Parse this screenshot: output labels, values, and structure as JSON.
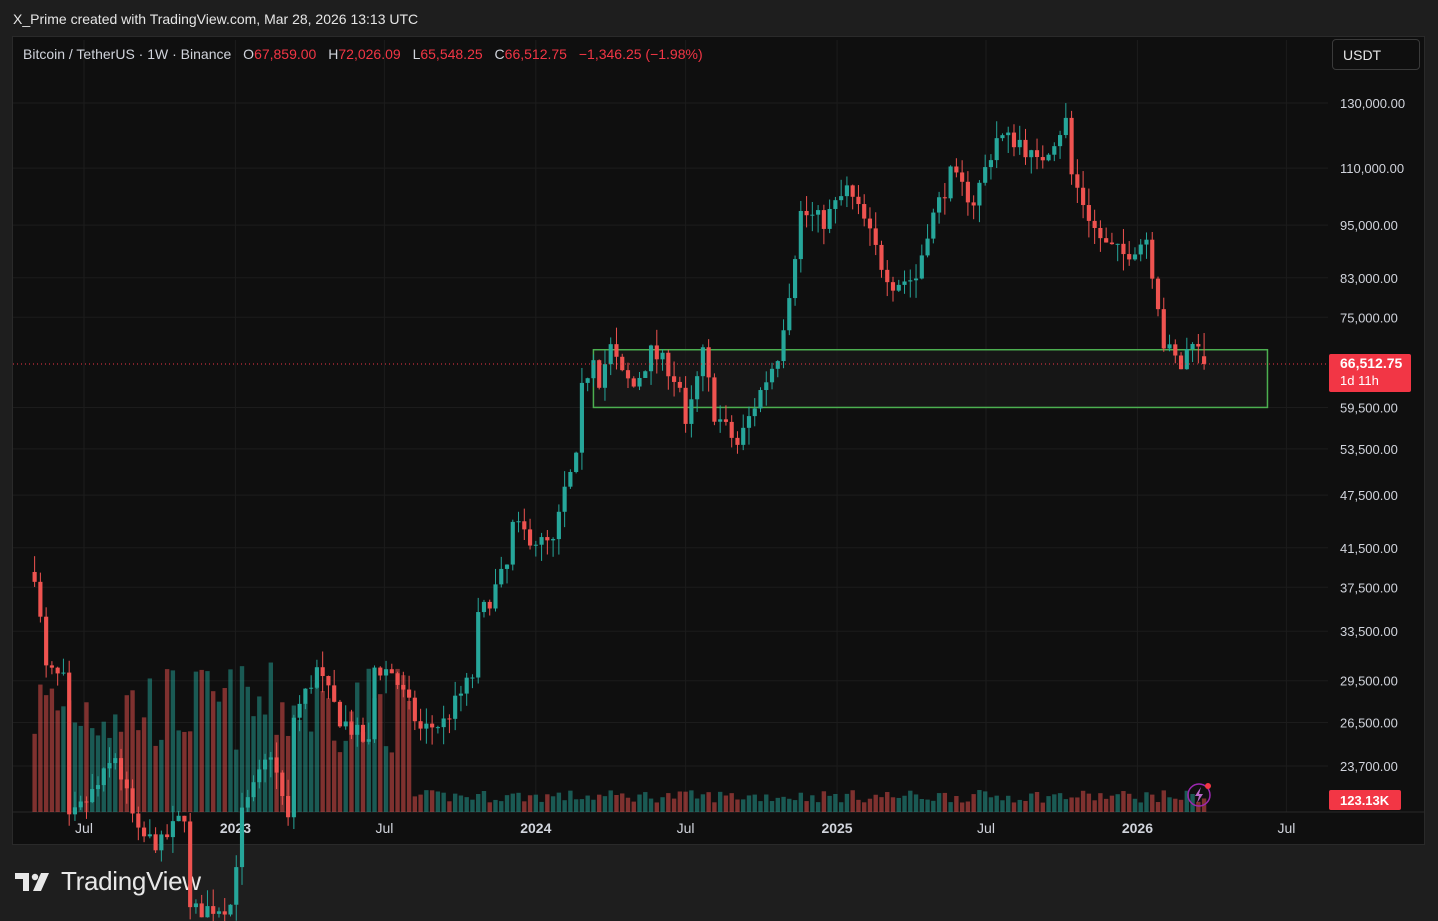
{
  "header": {
    "caption": "X_Prime created with TradingView.com, Mar 28, 2026 13:13 UTC"
  },
  "legend": {
    "symbol": "Bitcoin / TetherUS · 1W · Binance",
    "open_label": "O",
    "open": "67,859.00",
    "high_label": "H",
    "high": "72,026.09",
    "low_label": "L",
    "low": "65,548.25",
    "close_label": "C",
    "close": "66,512.75",
    "change": "−1,346.25 (−1.98%)"
  },
  "toolbar": {
    "currency": "USDT"
  },
  "footer": {
    "brand": "TradingView"
  },
  "colors": {
    "up": "#26a69a",
    "down": "#ef5350",
    "zone": "#4caf50",
    "price_label": "#f23645",
    "background": "#0f0f0f",
    "grid": "#1c1c1c"
  },
  "chart_data": {
    "type": "candlestick",
    "interval": "1W",
    "scale": "log",
    "grid": true,
    "y_ticks": [
      130000,
      110000,
      95000,
      83000,
      75000,
      59500,
      53500,
      47500,
      41500,
      37500,
      33500,
      29500,
      26500,
      23700
    ],
    "y_tick_labels": [
      "130,000.00",
      "110,000.00",
      "95,000.00",
      "83,000.00",
      "75,000.00",
      "59,500.00",
      "53,500.00",
      "47,500.00",
      "41,500.00",
      "37,500.00",
      "33,500.00",
      "29,500.00",
      "26,500.00",
      "23,700.00"
    ],
    "x_ticks": [
      "2022-07-01",
      "2023-01-01",
      "2023-07-01",
      "2024-01-01",
      "2024-07-01",
      "2025-01-01",
      "2025-07-01",
      "2026-01-01",
      "2026-07-01"
    ],
    "x_tick_labels": [
      "Jul",
      "2023",
      "Jul",
      "2024",
      "Jul",
      "2025",
      "Jul",
      "2026",
      "Jul"
    ],
    "last_price": 66512.75,
    "last_price_label": "66,512.75",
    "countdown": "1d 11h",
    "volume_label": "123.13K",
    "support_zone": {
      "from": "2024-03-11",
      "to": "2026-06-08",
      "low": 59500,
      "high": 69000
    },
    "weekly_close_path": [
      [
        "2022-05-02",
        39000
      ],
      [
        "2022-05-16",
        30300
      ],
      [
        "2022-06-06",
        29500
      ],
      [
        "2022-06-13",
        20500
      ],
      [
        "2022-07-18",
        22500
      ],
      [
        "2022-08-08",
        24300
      ],
      [
        "2022-09-05",
        19800
      ],
      [
        "2022-10-03",
        19400
      ],
      [
        "2022-10-31",
        21000
      ],
      [
        "2022-11-07",
        16300
      ],
      [
        "2022-12-26",
        16600
      ],
      [
        "2023-01-09",
        20900
      ],
      [
        "2023-02-13",
        24600
      ],
      [
        "2023-03-06",
        20500
      ],
      [
        "2023-03-13",
        26900
      ],
      [
        "2023-04-10",
        30300
      ],
      [
        "2023-05-08",
        26800
      ],
      [
        "2023-06-12",
        25000
      ],
      [
        "2023-06-19",
        30500
      ],
      [
        "2023-07-10",
        30200
      ],
      [
        "2023-08-14",
        26000
      ],
      [
        "2023-09-11",
        26500
      ],
      [
        "2023-10-16",
        29900
      ],
      [
        "2023-10-23",
        34500
      ],
      [
        "2023-11-27",
        39500
      ],
      [
        "2023-12-04",
        43800
      ],
      [
        "2024-01-08",
        42000
      ],
      [
        "2024-01-22",
        41800
      ],
      [
        "2024-02-05",
        48000
      ],
      [
        "2024-02-19",
        51800
      ],
      [
        "2024-02-26",
        62000
      ],
      [
        "2024-03-11",
        68400
      ],
      [
        "2024-03-18",
        64000
      ],
      [
        "2024-04-01",
        69300
      ],
      [
        "2024-04-15",
        64500
      ],
      [
        "2024-04-29",
        62800
      ],
      [
        "2024-05-20",
        68500
      ],
      [
        "2024-06-10",
        66000
      ],
      [
        "2024-06-24",
        62700
      ],
      [
        "2024-07-01",
        56000
      ],
      [
        "2024-07-22",
        68200
      ],
      [
        "2024-08-05",
        58700
      ],
      [
        "2024-09-02",
        54000
      ],
      [
        "2024-09-30",
        62000
      ],
      [
        "2024-10-21",
        68200
      ],
      [
        "2024-11-04",
        80400
      ],
      [
        "2024-11-18",
        98000
      ],
      [
        "2024-12-16",
        96000
      ],
      [
        "2025-01-13",
        104000
      ],
      [
        "2025-02-03",
        96000
      ],
      [
        "2025-02-24",
        86000
      ],
      [
        "2025-03-10",
        82000
      ],
      [
        "2025-04-07",
        83000
      ],
      [
        "2025-04-21",
        94000
      ],
      [
        "2025-05-19",
        108000
      ],
      [
        "2025-06-16",
        101000
      ],
      [
        "2025-07-14",
        119000
      ],
      [
        "2025-08-11",
        118000
      ],
      [
        "2025-09-01",
        111000
      ],
      [
        "2025-10-06",
        124000
      ],
      [
        "2025-10-13",
        108000
      ],
      [
        "2025-11-10",
        94000
      ],
      [
        "2025-11-24",
        90000
      ],
      [
        "2025-12-15",
        88000
      ],
      [
        "2026-01-12",
        92000
      ],
      [
        "2026-01-26",
        78000
      ],
      [
        "2026-02-02",
        70000
      ],
      [
        "2026-02-23",
        66000
      ],
      [
        "2026-03-09",
        71500
      ],
      [
        "2026-03-23",
        66500
      ]
    ]
  }
}
